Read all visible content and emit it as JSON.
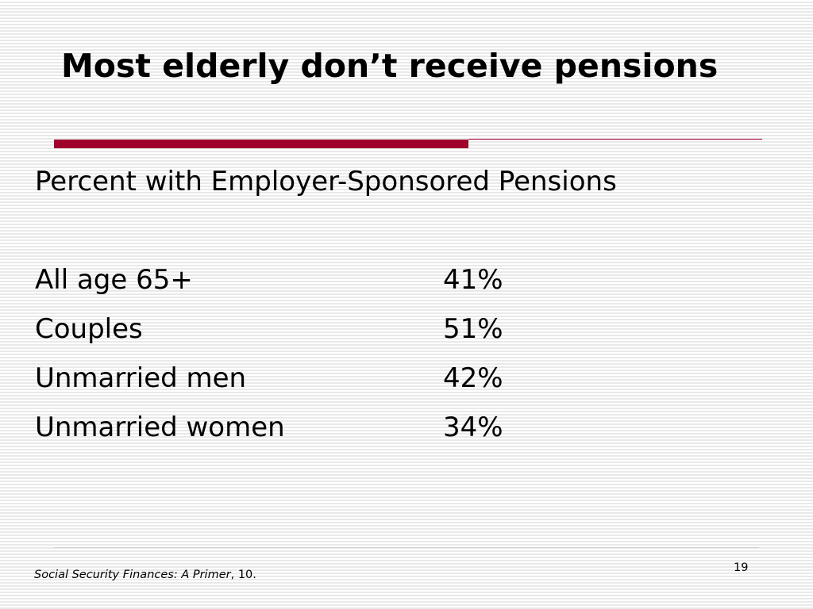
{
  "slide": {
    "title": "Most elderly don’t receive pensions",
    "accent_color": "#a0002c",
    "subtitle": "Percent with Employer-Sponsored Pensions",
    "rows": [
      {
        "label": "All age 65+",
        "value": "41%"
      },
      {
        "label": "Couples",
        "value": "51%"
      },
      {
        "label": "Unmarried men",
        "value": "42%"
      },
      {
        "label": "Unmarried women",
        "value": "34%"
      }
    ],
    "footnote": {
      "italic": "Social Security Finances:  A Primer",
      "rest": ", 10."
    },
    "page_number": "19"
  }
}
